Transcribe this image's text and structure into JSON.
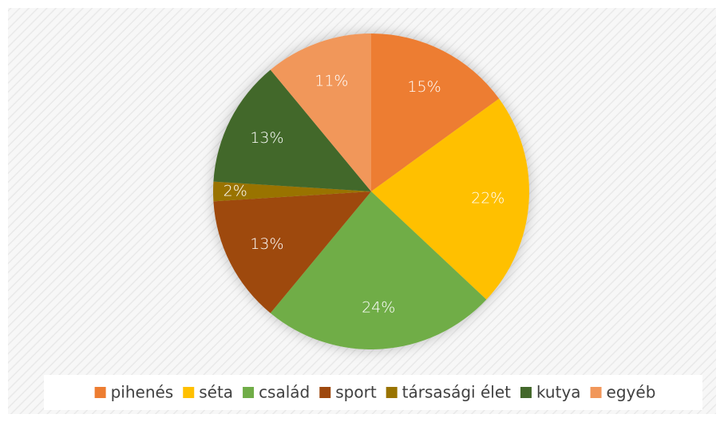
{
  "chart_data": {
    "type": "pie",
    "categories": [
      "pihenés",
      "séta",
      "család",
      "sport",
      "társasági élet",
      "kutya",
      "egyéb"
    ],
    "values": [
      15,
      22,
      24,
      13,
      2,
      13,
      11
    ],
    "value_labels": [
      "15%",
      "22%",
      "24%",
      "13%",
      "2%",
      "13%",
      "11%"
    ],
    "colors": [
      "#ED7D31",
      "#FFC000",
      "#70AD47",
      "#9E480E",
      "#997300",
      "#43682B",
      "#F1975A"
    ],
    "legend": "bottom"
  }
}
